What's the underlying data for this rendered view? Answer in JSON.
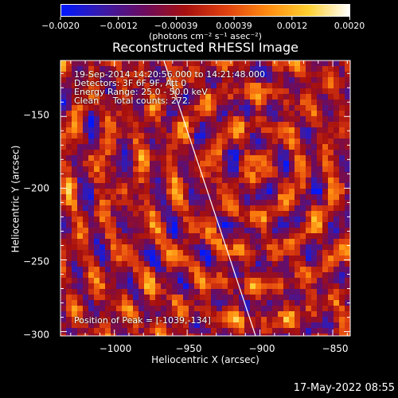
{
  "colorbar": {
    "tick_labels": [
      "−0.0020",
      "−0.0012",
      "−0.00039",
      "0.00039",
      "0.0012",
      "0.0020"
    ],
    "units_label": "(photons cm⁻² s⁻¹ asec⁻²)",
    "colors": [
      "#0018ff",
      "#3a1aa8",
      "#6a0c60",
      "#a50f0f",
      "#e0400f",
      "#ff8a10",
      "#ffd030",
      "#ffffff"
    ]
  },
  "plot": {
    "title": "Reconstructed RHESSI Image",
    "info_lines": [
      "19-Sep-2014 14:20:56.000 to 14:21:48.000",
      "Detectors: 3F 6F 9F, Att 0",
      "Energy Range: 25.0 - 50.0 keV",
      "Clean     Total counts: 272."
    ],
    "peak_text": "Position of Peak = [-1039,-134]",
    "x_axis": {
      "label": "Heliocentric X (arcsec)",
      "tick_labels": [
        "−1000",
        "−950",
        "−900",
        "−850"
      ],
      "tick_values": [
        -1000,
        -950,
        -900,
        -850
      ],
      "range": [
        -1037,
        -838
      ]
    },
    "y_axis": {
      "label": "Heliocentric Y (arcsec)",
      "tick_labels": [
        "−150",
        "−200",
        "−250",
        "−300"
      ],
      "tick_values": [
        -150,
        -200,
        -250,
        -300
      ],
      "range": [
        -303,
        -111
      ]
    },
    "limb_line": [
      [
        -966,
        -111
      ],
      [
        -903,
        -303
      ]
    ]
  },
  "footer": {
    "date": "17-May-2022 08:55"
  }
}
